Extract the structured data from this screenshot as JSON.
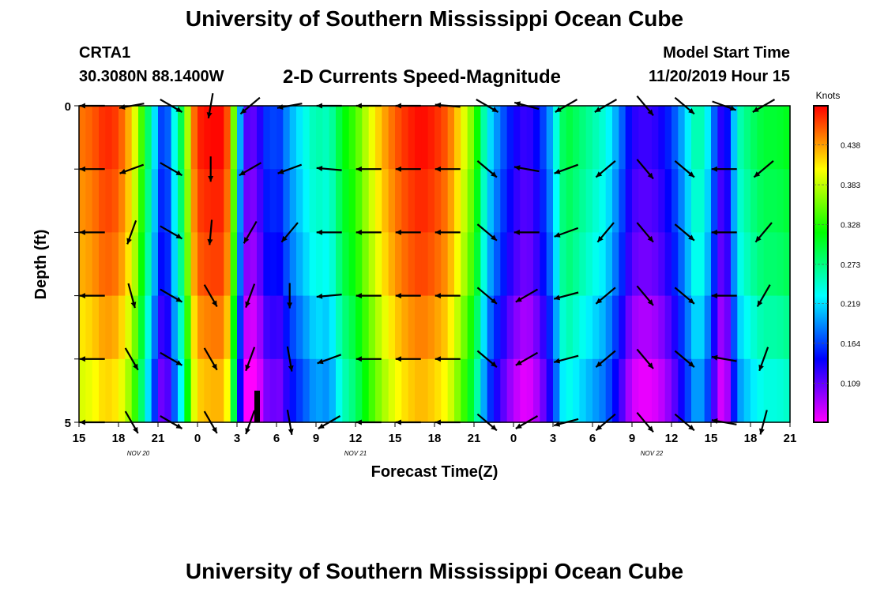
{
  "titles": {
    "main": "University of Southern Mississippi Ocean Cube",
    "bottom": "University of Southern Mississippi Ocean Cube",
    "station_id": "CRTA1",
    "station_coords": "30.3080N 88.1400W",
    "plot_title": "2-D Currents Speed-Magnitude",
    "start_label": "Model Start Time",
    "start_value": "11/20/2019 Hour 15"
  },
  "colors": {
    "arrow": "#000000",
    "axis": "#000000",
    "background": "#ffffff"
  },
  "chart_data": {
    "type": "heatmap",
    "title": "2-D Currents Speed-Magnitude",
    "xlabel": "Forecast Time(Z)",
    "ylabel": "Depth (ft)",
    "xlim": [
      15,
      69
    ],
    "ylim": [
      0,
      5
    ],
    "x_ticks": [
      {
        "x": 15,
        "label": "15"
      },
      {
        "x": 18,
        "label": "18"
      },
      {
        "x": 21,
        "label": "21"
      },
      {
        "x": 24,
        "label": "0"
      },
      {
        "x": 27,
        "label": "3"
      },
      {
        "x": 30,
        "label": "6"
      },
      {
        "x": 33,
        "label": "9"
      },
      {
        "x": 36,
        "label": "12"
      },
      {
        "x": 39,
        "label": "15"
      },
      {
        "x": 42,
        "label": "18"
      },
      {
        "x": 45,
        "label": "21"
      },
      {
        "x": 48,
        "label": "0"
      },
      {
        "x": 51,
        "label": "3"
      },
      {
        "x": 54,
        "label": "6"
      },
      {
        "x": 57,
        "label": "9"
      },
      {
        "x": 60,
        "label": "12"
      },
      {
        "x": 63,
        "label": "15"
      },
      {
        "x": 66,
        "label": "18"
      },
      {
        "x": 69,
        "label": "21"
      }
    ],
    "date_labels": [
      {
        "x": 19.5,
        "label": "NOV  20"
      },
      {
        "x": 36,
        "label": "NOV  21"
      },
      {
        "x": 58.5,
        "label": "NOV  22"
      }
    ],
    "y_ticks": [
      {
        "y": 0,
        "label": "0"
      },
      {
        "y": 5,
        "label": "5"
      }
    ],
    "colorbar": {
      "title": "Knots",
      "min": 0.055,
      "max": 0.492,
      "ticks": [
        "0.109",
        "0.164",
        "0.219",
        "0.273",
        "0.328",
        "0.383",
        "0.438"
      ]
    },
    "speed_profile_knots": [
      [
        15,
        0.44
      ],
      [
        16,
        0.45
      ],
      [
        17,
        0.47
      ],
      [
        18,
        0.46
      ],
      [
        19,
        0.41
      ],
      [
        19.5,
        0.36
      ],
      [
        20,
        0.3
      ],
      [
        20.5,
        0.24
      ],
      [
        21,
        0.18
      ],
      [
        21.5,
        0.13
      ],
      [
        22,
        0.2
      ],
      [
        22.5,
        0.25
      ],
      [
        23,
        0.31
      ],
      [
        23.5,
        0.42
      ],
      [
        24,
        0.47
      ],
      [
        25,
        0.48
      ],
      [
        26,
        0.48
      ],
      [
        26.5,
        0.43
      ],
      [
        27,
        0.26
      ],
      [
        27.5,
        0.12
      ],
      [
        28,
        0.09
      ],
      [
        29,
        0.13
      ],
      [
        29.5,
        0.17
      ],
      [
        30,
        0.14
      ],
      [
        31,
        0.19
      ],
      [
        32,
        0.22
      ],
      [
        33,
        0.25
      ],
      [
        34,
        0.24
      ],
      [
        35,
        0.3
      ],
      [
        36,
        0.33
      ],
      [
        37,
        0.38
      ],
      [
        38,
        0.42
      ],
      [
        39,
        0.45
      ],
      [
        40,
        0.47
      ],
      [
        41,
        0.48
      ],
      [
        42,
        0.47
      ],
      [
        43,
        0.45
      ],
      [
        44,
        0.4
      ],
      [
        45,
        0.34
      ],
      [
        45.5,
        0.28
      ],
      [
        46,
        0.22
      ],
      [
        47,
        0.17
      ],
      [
        48,
        0.13
      ],
      [
        49,
        0.11
      ],
      [
        50,
        0.14
      ],
      [
        51,
        0.2
      ],
      [
        51.5,
        0.26
      ],
      [
        52,
        0.29
      ],
      [
        53,
        0.27
      ],
      [
        54,
        0.25
      ],
      [
        55,
        0.23
      ],
      [
        56,
        0.18
      ],
      [
        57,
        0.12
      ],
      [
        58,
        0.11
      ],
      [
        59,
        0.12
      ],
      [
        60,
        0.15
      ],
      [
        61,
        0.2
      ],
      [
        62,
        0.26
      ],
      [
        63,
        0.2
      ],
      [
        63.5,
        0.13
      ],
      [
        64,
        0.11
      ],
      [
        64.5,
        0.16
      ],
      [
        65,
        0.24
      ],
      [
        66,
        0.27
      ],
      [
        67,
        0.29
      ],
      [
        68,
        0.29
      ],
      [
        69,
        0.3
      ]
    ],
    "layer_speed_adjustments_knots": [
      0.01,
      0.0,
      -0.01,
      -0.03,
      -0.05
    ],
    "current_vectors": [
      {
        "t": 16,
        "dirs": [
          180,
          180,
          180,
          180,
          180,
          180
        ]
      },
      {
        "t": 19,
        "dirs": [
          190,
          200,
          250,
          285,
          300,
          300
        ]
      },
      {
        "t": 22,
        "dirs": [
          330,
          330,
          330,
          330,
          330,
          330
        ]
      },
      {
        "t": 25,
        "dirs": [
          260,
          270,
          265,
          300,
          300,
          300
        ]
      },
      {
        "t": 28,
        "dirs": [
          220,
          210,
          240,
          250,
          250,
          250
        ]
      },
      {
        "t": 31,
        "dirs": [
          190,
          200,
          230,
          270,
          280,
          280
        ]
      },
      {
        "t": 34,
        "dirs": [
          180,
          175,
          180,
          185,
          200,
          210
        ]
      },
      {
        "t": 37,
        "dirs": [
          180,
          180,
          180,
          180,
          180,
          180
        ]
      },
      {
        "t": 40,
        "dirs": [
          180,
          180,
          180,
          180,
          180,
          180
        ]
      },
      {
        "t": 43,
        "dirs": [
          175,
          180,
          180,
          180,
          180,
          180
        ]
      },
      {
        "t": 46,
        "dirs": [
          330,
          320,
          320,
          320,
          320,
          320
        ]
      },
      {
        "t": 49,
        "dirs": [
          165,
          170,
          180,
          210,
          210,
          210
        ]
      },
      {
        "t": 52,
        "dirs": [
          210,
          200,
          200,
          195,
          195,
          195
        ]
      },
      {
        "t": 55,
        "dirs": [
          210,
          220,
          230,
          220,
          220,
          220
        ]
      },
      {
        "t": 58,
        "dirs": [
          310,
          310,
          310,
          310,
          310,
          310
        ]
      },
      {
        "t": 61,
        "dirs": [
          320,
          320,
          320,
          320,
          320,
          320
        ]
      },
      {
        "t": 64,
        "dirs": [
          340,
          180,
          180,
          180,
          170,
          170
        ]
      },
      {
        "t": 67,
        "dirs": [
          210,
          220,
          230,
          240,
          250,
          255
        ]
      }
    ],
    "highlight_bar": {
      "x": 28.5,
      "depth_from": 4.5,
      "depth_to": 5
    }
  }
}
